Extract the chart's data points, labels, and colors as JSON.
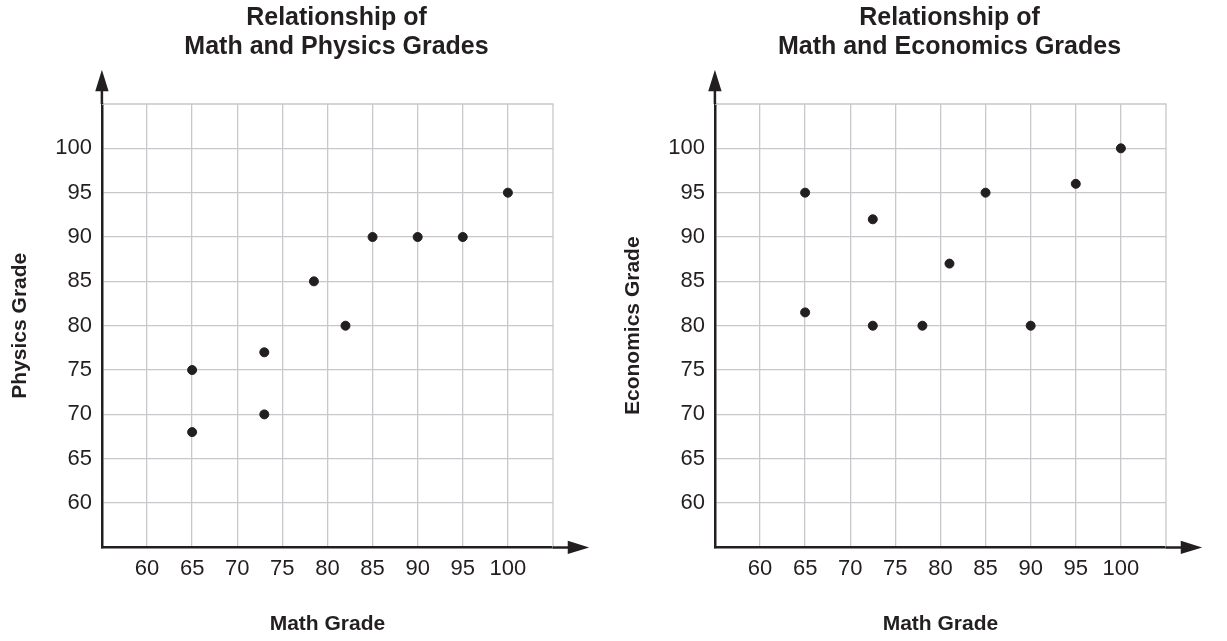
{
  "chart_data": [
    {
      "type": "scatter",
      "title": "Relationship of\nMath and Physics Grades",
      "xlabel": "Math Grade",
      "ylabel": "Physics Grade",
      "x": [
        65,
        65,
        73,
        73,
        78.5,
        82,
        85,
        90,
        95,
        100
      ],
      "values": [
        75,
        68,
        77,
        70,
        85,
        80,
        90,
        90,
        90,
        95
      ],
      "color": "#231f20",
      "xlim": [
        55,
        105
      ],
      "ylim": [
        55,
        105
      ],
      "xticks": [
        60,
        65,
        70,
        75,
        80,
        85,
        90,
        95,
        100
      ],
      "yticks": [
        60,
        65,
        70,
        75,
        80,
        85,
        90,
        95,
        100
      ],
      "grid": true,
      "legend": false,
      "marker": "circle"
    },
    {
      "type": "scatter",
      "title": "Relationship of\nMath and Economics Grades",
      "xlabel": "Math Grade",
      "ylabel": "Economics Grade",
      "x": [
        65,
        65,
        72.5,
        72.5,
        78,
        81,
        85,
        90,
        95,
        100
      ],
      "values": [
        95,
        81.5,
        92,
        80,
        80,
        87,
        95,
        80,
        96,
        100
      ],
      "color": "#231f20",
      "xlim": [
        55,
        105
      ],
      "ylim": [
        55,
        105
      ],
      "xticks": [
        60,
        65,
        70,
        75,
        80,
        85,
        90,
        95,
        100
      ],
      "yticks": [
        60,
        65,
        70,
        75,
        80,
        85,
        90,
        95,
        100
      ],
      "grid": true,
      "legend": false,
      "marker": "circle"
    }
  ]
}
